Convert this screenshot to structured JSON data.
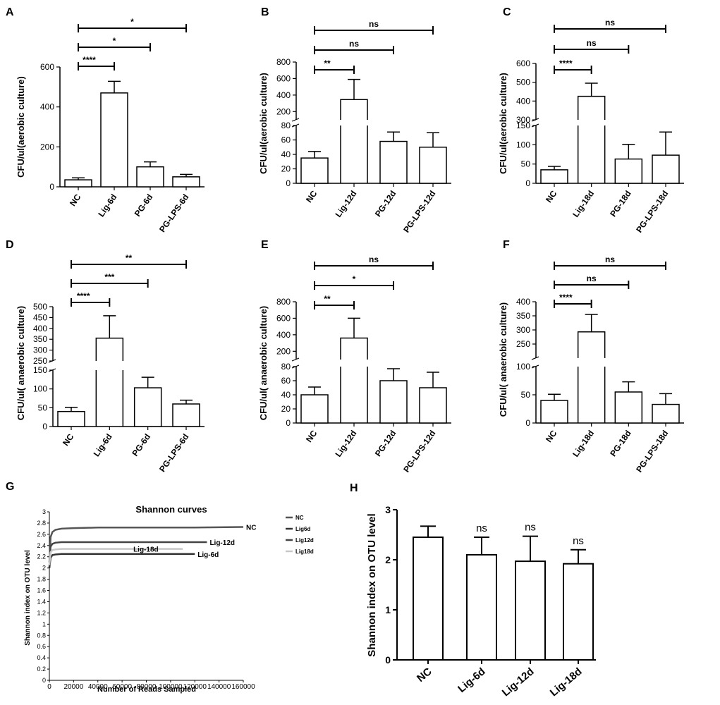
{
  "chart_data": [
    {
      "panel": "A",
      "type": "bar",
      "broken": false,
      "ylabel": "CFU/ul(aerobic culture)",
      "categories": [
        "NC",
        "Lig-6d",
        "PG-6d",
        "PG-LPS-6d"
      ],
      "values": [
        35,
        470,
        100,
        50
      ],
      "errors": [
        10,
        58,
        25,
        12
      ],
      "yticks": [
        "0",
        "200",
        "400",
        "600"
      ],
      "ylim": [
        0,
        600
      ],
      "brackets": [
        {
          "to": 1,
          "label": "****"
        },
        {
          "to": 2,
          "label": "*"
        },
        {
          "to": 3,
          "label": "*"
        }
      ]
    },
    {
      "panel": "B",
      "type": "bar",
      "broken": true,
      "ylabel": "CFU/ul(aerobic culture)",
      "categories": [
        "NC",
        "Lig-12d",
        "PG-12d",
        "PG-LPS-12d"
      ],
      "values": [
        35,
        345,
        58,
        50
      ],
      "errors": [
        9,
        245,
        13,
        20
      ],
      "lower": {
        "ylim": [
          0,
          80
        ],
        "ticks": [
          "0",
          "20",
          "40",
          "60",
          "80"
        ]
      },
      "upper": {
        "ylim": [
          100,
          800
        ],
        "ticks": [
          "200",
          "400",
          "600",
          "800"
        ]
      },
      "brackets": [
        {
          "to": 1,
          "label": "**"
        },
        {
          "to": 2,
          "label": "ns"
        },
        {
          "to": 3,
          "label": "ns"
        }
      ]
    },
    {
      "panel": "C",
      "type": "bar",
      "broken": true,
      "ylabel": "CFU/ul(aerobic culture)",
      "categories": [
        "NC",
        "Lig-18d",
        "PG-18d",
        "PG-LPS-18d"
      ],
      "values": [
        35,
        425,
        63,
        73
      ],
      "errors": [
        9,
        70,
        38,
        60
      ],
      "lower": {
        "ylim": [
          0,
          150
        ],
        "ticks": [
          "0",
          "50",
          "100",
          "150"
        ]
      },
      "upper": {
        "ylim": [
          300,
          600
        ],
        "ticks": [
          "300",
          "400",
          "500",
          "600"
        ]
      },
      "brackets": [
        {
          "to": 1,
          "label": "****"
        },
        {
          "to": 2,
          "label": "ns"
        },
        {
          "to": 3,
          "label": "ns"
        }
      ]
    },
    {
      "panel": "D",
      "type": "bar",
      "broken": true,
      "ylabel": "CFU/ul( anaerobic culture)",
      "categories": [
        "NC",
        "Lig-6d",
        "PG-6d",
        "PG-LPS-6d"
      ],
      "values": [
        40,
        355,
        103,
        60
      ],
      "errors": [
        11,
        103,
        28,
        10
      ],
      "lower": {
        "ylim": [
          0,
          150
        ],
        "ticks": [
          "0",
          "50",
          "100",
          "150"
        ]
      },
      "upper": {
        "ylim": [
          250,
          500
        ],
        "ticks": [
          "250",
          "300",
          "350",
          "400",
          "450",
          "500"
        ]
      },
      "brackets": [
        {
          "to": 1,
          "label": "****"
        },
        {
          "to": 2,
          "label": "***"
        },
        {
          "to": 3,
          "label": "**"
        }
      ]
    },
    {
      "panel": "E",
      "type": "bar",
      "broken": true,
      "ylabel": "CFU/ul( anaerobic culture)",
      "categories": [
        "NC",
        "Lig-12d",
        "PG-12d",
        "PG-LPS-12d"
      ],
      "values": [
        40,
        360,
        60,
        50
      ],
      "errors": [
        11,
        240,
        17,
        22
      ],
      "lower": {
        "ylim": [
          0,
          80
        ],
        "ticks": [
          "0",
          "20",
          "40",
          "60",
          "80"
        ]
      },
      "upper": {
        "ylim": [
          100,
          800
        ],
        "ticks": [
          "200",
          "400",
          "600",
          "800"
        ]
      },
      "brackets": [
        {
          "to": 1,
          "label": "**"
        },
        {
          "to": 2,
          "label": "*"
        },
        {
          "to": 3,
          "label": "ns"
        }
      ]
    },
    {
      "panel": "F",
      "type": "bar",
      "broken": true,
      "ylabel": "CFU/ul( anaerobic culture)",
      "categories": [
        "NC",
        "Lig-18d",
        "PG-18d",
        "PG-LPS-18d"
      ],
      "values": [
        40,
        293,
        55,
        33
      ],
      "errors": [
        11,
        62,
        18,
        19
      ],
      "lower": {
        "ylim": [
          0,
          100
        ],
        "ticks": [
          "0",
          "50",
          "100"
        ]
      },
      "upper": {
        "ylim": [
          200,
          400
        ],
        "ticks": [
          "250",
          "300",
          "350",
          "400"
        ]
      },
      "brackets": [
        {
          "to": 1,
          "label": "****"
        },
        {
          "to": 2,
          "label": "ns"
        },
        {
          "to": 3,
          "label": "ns"
        }
      ]
    },
    {
      "panel": "G",
      "type": "line",
      "title": "Shannon curves",
      "xlabel": "Number of Reads Sampled",
      "ylabel": "Shannon index on OTU level",
      "xlim": [
        0,
        160000
      ],
      "ylim": [
        0,
        3
      ],
      "xticks": [
        "0",
        "20000",
        "40000",
        "60000",
        "80000",
        "100000",
        "120000",
        "140000",
        "160000"
      ],
      "yticks": [
        "0",
        "0.2",
        "0.4",
        "0.6",
        "0.8",
        "1",
        "1.2",
        "1.4",
        "1.6",
        "1.8",
        "2",
        "2.2",
        "2.4",
        "2.6",
        "2.8",
        "3"
      ],
      "legend": [
        "NC",
        "Lig6d",
        "Lig12d",
        "Lig18d"
      ],
      "series": [
        {
          "name": "NC",
          "label": "NC",
          "color": "#555555",
          "x": [
            0,
            1000,
            2500,
            5000,
            10000,
            20000,
            40000,
            80000,
            120000,
            160000
          ],
          "y": [
            2.0,
            2.55,
            2.64,
            2.68,
            2.7,
            2.71,
            2.72,
            2.72,
            2.72,
            2.73
          ]
        },
        {
          "name": "Lig6d",
          "label": "Lig-6d",
          "color": "#333333",
          "x": [
            0,
            1000,
            2500,
            5000,
            10000,
            40000,
            80000,
            120000
          ],
          "y": [
            2.0,
            2.18,
            2.23,
            2.24,
            2.25,
            2.25,
            2.25,
            2.25
          ]
        },
        {
          "name": "Lig12d",
          "label": "Lig-12d",
          "color": "#444444",
          "x": [
            0,
            1000,
            2500,
            5000,
            10000,
            40000,
            80000,
            130000
          ],
          "y": [
            2.1,
            2.38,
            2.43,
            2.45,
            2.46,
            2.46,
            2.46,
            2.46
          ]
        },
        {
          "name": "Lig18d",
          "label": "Lig-18d",
          "color": "#c8c8c8",
          "x": [
            0,
            1000,
            2500,
            5000,
            10000,
            40000,
            80000,
            110000
          ],
          "y": [
            2.05,
            2.28,
            2.32,
            2.33,
            2.34,
            2.34,
            2.34,
            2.34
          ]
        }
      ]
    },
    {
      "panel": "H",
      "type": "bar",
      "broken": false,
      "ylabel": "Shannon index on OTU level",
      "categories": [
        "NC",
        "Lig-6d",
        "Lig-12d",
        "Lig-18d"
      ],
      "values": [
        2.45,
        2.1,
        1.97,
        1.92
      ],
      "errors": [
        0.22,
        0.35,
        0.5,
        0.28
      ],
      "ylim": [
        0,
        3
      ],
      "yticks": [
        "0",
        "1",
        "2",
        "3"
      ],
      "annotations": [
        "",
        "ns",
        "ns",
        "ns"
      ]
    }
  ]
}
